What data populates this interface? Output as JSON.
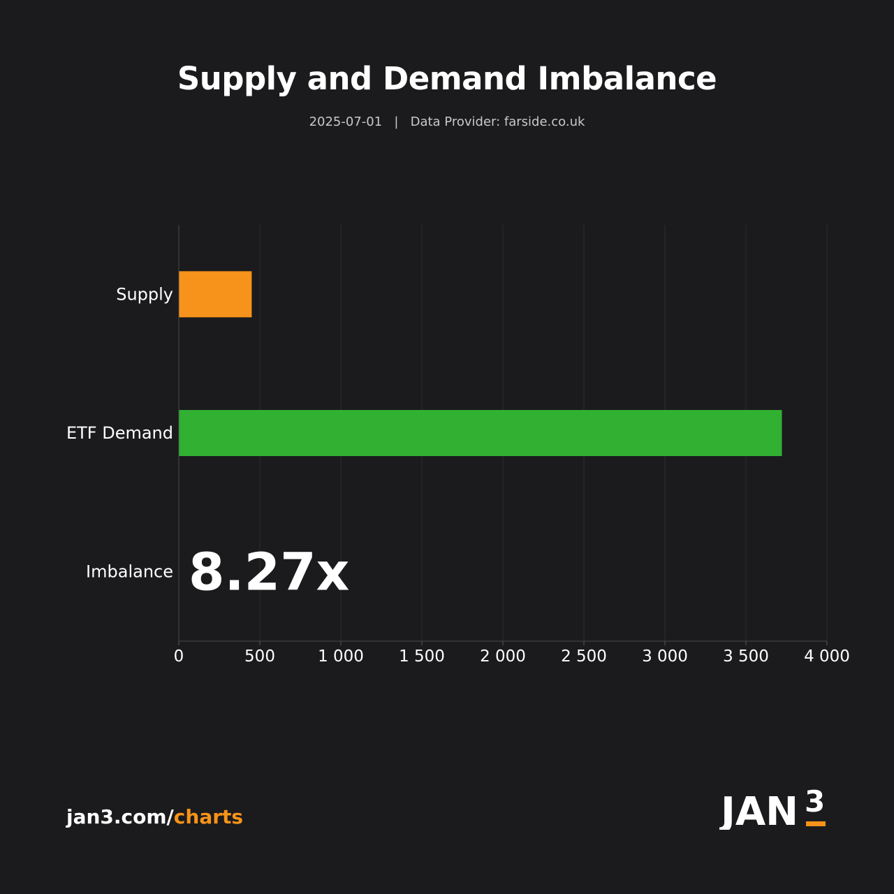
{
  "header": {
    "title": "Supply and Demand Imbalance",
    "subtitle_date": "2025-07-01",
    "subtitle_separator": "|",
    "subtitle_provider": "Data Provider: farside.co.uk"
  },
  "chart_data": {
    "type": "bar",
    "orientation": "horizontal",
    "title": "Supply and Demand Imbalance",
    "categories": [
      "Supply",
      "ETF Demand",
      "Imbalance"
    ],
    "values": [
      450,
      3722,
      null
    ],
    "colors": [
      "#f7931a",
      "#32b032",
      null
    ],
    "xlim": [
      0,
      4000
    ],
    "xticks": [
      0,
      500,
      1000,
      1500,
      2000,
      2500,
      3000,
      3500,
      4000
    ],
    "xtick_labels": [
      "0",
      "500",
      "1 000",
      "1 500",
      "2 000",
      "2 500",
      "3 000",
      "3 500",
      "4 000"
    ],
    "grid": true,
    "annotation": {
      "category": "Imbalance",
      "text": "8.27x"
    }
  },
  "footer": {
    "link_prefix": "jan3.com/",
    "link_accent": "charts",
    "logo_text": "JAN",
    "logo_superscript": "3"
  },
  "colors": {
    "background": "#1b1b1d",
    "accent": "#f7931a",
    "demand": "#32b032"
  }
}
